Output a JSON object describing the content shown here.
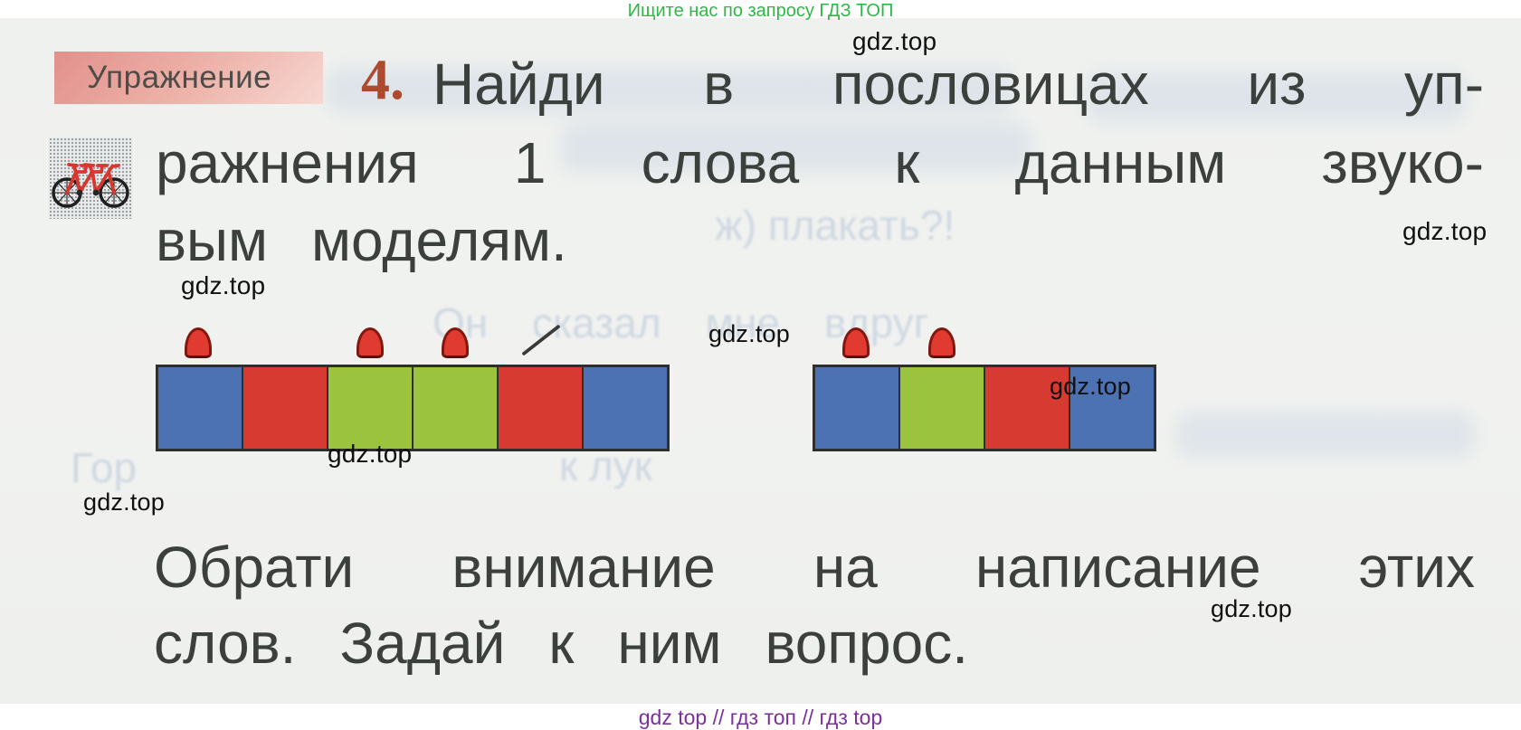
{
  "promo_top": {
    "text": "Ищите нас по запросу ГДЗ ТОП",
    "color": "#2db845"
  },
  "footer": {
    "text": "gdz top  //  гдз топ  //  гдз top",
    "color": "#7d2f9e"
  },
  "watermark": {
    "text": "gdz.top"
  },
  "exercise": {
    "label": "Упражнение",
    "number": "4.",
    "task_line1": [
      "Найди",
      "в",
      "пословицах",
      "из",
      "уп-"
    ],
    "task_line2": [
      "ражнения",
      "1",
      "слова",
      "к",
      "данным",
      "звуко-"
    ],
    "task_line3": [
      "вым",
      "моделям."
    ],
    "note_line1": [
      "Обрати",
      "внимание",
      "на",
      "написание",
      "этих"
    ],
    "note_line2": [
      "слов.",
      "Задай",
      "к",
      "ним",
      "вопрос."
    ]
  },
  "icon": {
    "name": "tandem-bicycle",
    "frame_color": "#d6372e",
    "wheel_color": "#1f1f1f"
  },
  "models": {
    "colors": {
      "blue": "#4c72b4",
      "red": "#d63a31",
      "green": "#9cc33d"
    },
    "left": {
      "cells": [
        "blue",
        "red",
        "green",
        "green",
        "red",
        "blue"
      ],
      "marks": [
        {
          "type": "cap",
          "cell": 0
        },
        {
          "type": "cap",
          "cell": 2
        },
        {
          "type": "cap",
          "cell": 3
        },
        {
          "type": "stress",
          "cell": 4
        }
      ]
    },
    "right": {
      "cells": [
        "blue",
        "green",
        "red",
        "blue"
      ],
      "marks": [
        {
          "type": "cap",
          "cell": 0
        },
        {
          "type": "cap",
          "cell": 1
        }
      ]
    }
  },
  "ghost_texts": [
    {
      "text": "ж)  плакать?!"
    },
    {
      "text": "Он  сказал  мне  вдруг"
    },
    {
      "text": "к   лук"
    },
    {
      "text": "Гор"
    }
  ]
}
